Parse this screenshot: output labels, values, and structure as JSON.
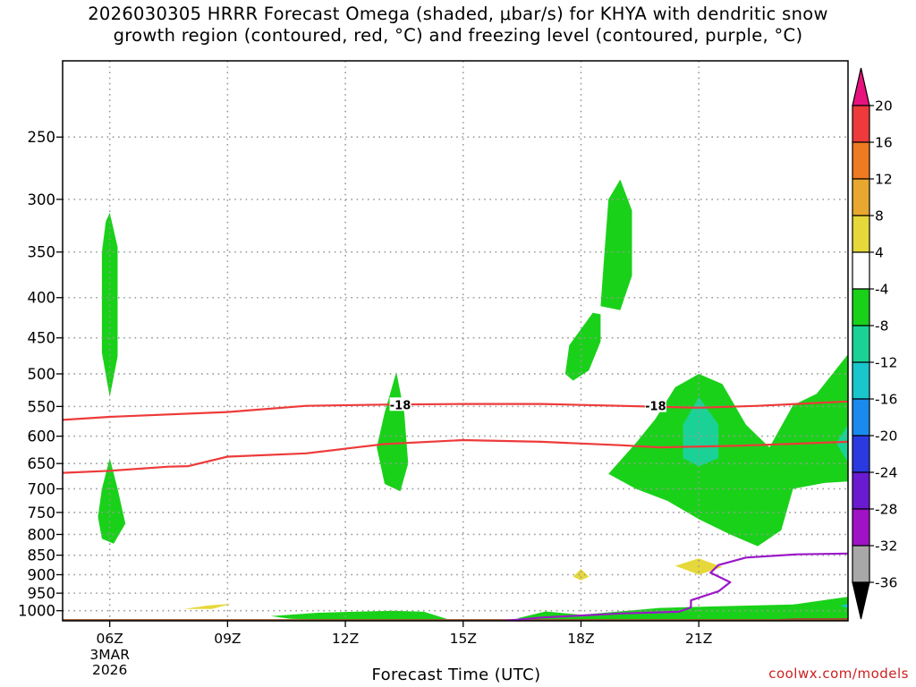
{
  "title_line1": "2026030305 HRRR Forecast Omega (shaded, μbar/s) for KHYA with dendritic snow",
  "title_line2": "growth region (contoured, red, °C) and freezing level (contoured, purple, °C)",
  "x_axis_title": "Forecast Time (UTC)",
  "credit": "coolwx.com/models",
  "chart_data": {
    "type": "contour",
    "title": "2026030305 HRRR Forecast Omega (shaded, μbar/s) for KHYA with dendritic snow growth region (contoured, red, °C) and freezing level (contoured, purple, °C)",
    "xlabel": "Forecast Time (UTC)",
    "ylabel": "",
    "x_range_hours_utc": [
      4.8,
      24.8
    ],
    "y_range_hpa": [
      1030,
      200
    ],
    "x_ticks": [
      {
        "hour": 6,
        "label": "06Z",
        "sub": [
          "3MAR",
          "2026"
        ]
      },
      {
        "hour": 9,
        "label": "09Z"
      },
      {
        "hour": 12,
        "label": "12Z"
      },
      {
        "hour": 15,
        "label": "15Z"
      },
      {
        "hour": 18,
        "label": "18Z"
      },
      {
        "hour": 21,
        "label": "21Z"
      }
    ],
    "y_ticks": [
      250,
      300,
      350,
      400,
      450,
      500,
      550,
      600,
      650,
      700,
      750,
      800,
      850,
      900,
      950,
      1000
    ],
    "grid": true,
    "colorbar": {
      "labels": [
        "20",
        "16",
        "12",
        "8",
        "4",
        "-4",
        "-8",
        "-12",
        "-16",
        "-20",
        "-24",
        "-28",
        "-32",
        "-36"
      ],
      "colors": [
        "#e8127e",
        "#ee3a3a",
        "#ee7a22",
        "#e8a830",
        "#e6d83a",
        "#ffffff",
        "#1ad11a",
        "#1ad296",
        "#18c6cc",
        "#1a8aee",
        "#2a3ae0",
        "#6a1ad0",
        "#a012c6",
        "#a8a8a8",
        "#000000"
      ]
    },
    "contour_lines": [
      {
        "name": "-18",
        "color": "#ee3a3a",
        "points": [
          [
            4.8,
            572
          ],
          [
            6,
            567
          ],
          [
            9,
            559
          ],
          [
            11,
            549
          ],
          [
            13,
            547
          ],
          [
            15,
            546
          ],
          [
            17,
            546
          ],
          [
            19,
            549
          ],
          [
            21,
            552
          ],
          [
            22.5,
            549
          ],
          [
            24.8,
            542
          ]
        ]
      },
      {
        "name": "-12",
        "color": "#ee3a3a",
        "points": [
          [
            4.8,
            668
          ],
          [
            6,
            664
          ],
          [
            7.5,
            656
          ],
          [
            8,
            655
          ],
          [
            9,
            637
          ],
          [
            11,
            631
          ],
          [
            13,
            614
          ],
          [
            15,
            607
          ],
          [
            17,
            610
          ],
          [
            19,
            616
          ],
          [
            20,
            620
          ],
          [
            22,
            617
          ],
          [
            24.8,
            610
          ]
        ]
      },
      {
        "name": "0",
        "color": "#9a18c8",
        "points": [
          [
            15.6,
            1035
          ],
          [
            17,
            1020
          ],
          [
            19,
            1008
          ],
          [
            20.5,
            1003
          ],
          [
            20.8,
            990
          ],
          [
            20.8,
            970
          ],
          [
            21.5,
            945
          ],
          [
            21.8,
            920
          ],
          [
            21.3,
            895
          ],
          [
            21.5,
            875
          ],
          [
            22.2,
            856
          ],
          [
            23.5,
            848
          ],
          [
            24.8,
            846
          ]
        ]
      }
    ],
    "contour_labels": [
      {
        "text": "-18",
        "hour": 13.4,
        "hpa": 547,
        "color": "#ee3a3a"
      },
      {
        "text": "-18",
        "hour": 19.9,
        "hpa": 549,
        "color": "#ee3a3a"
      }
    ],
    "shaded_regions": [
      {
        "bin": "-4 to -8",
        "color": "#1ad11a",
        "description": "upward motion near 06Z aloft",
        "points": [
          [
            6.0,
            312
          ],
          [
            6.2,
            345
          ],
          [
            6.2,
            400
          ],
          [
            6.2,
            475
          ],
          [
            6.0,
            535
          ],
          [
            5.8,
            470
          ],
          [
            5.8,
            398
          ],
          [
            5.8,
            350
          ],
          [
            5.9,
            320
          ]
        ]
      },
      {
        "bin": "-4 to -8",
        "color": "#1ad11a",
        "description": "upward motion near 06Z low",
        "points": [
          [
            6.0,
            640
          ],
          [
            6.2,
            700
          ],
          [
            6.4,
            775
          ],
          [
            6.1,
            822
          ],
          [
            5.8,
            810
          ],
          [
            5.7,
            760
          ],
          [
            5.8,
            700
          ]
        ]
      },
      {
        "bin": "4 to 8",
        "color": "#e6d83a",
        "description": "weak sinking near 08Z surface",
        "points": [
          [
            7.9,
            995
          ],
          [
            8.5,
            985
          ],
          [
            9.1,
            980
          ],
          [
            8.6,
            995
          ]
        ]
      },
      {
        "bin": "-4 to -8",
        "color": "#1ad11a",
        "description": "upward motion near 13Z",
        "points": [
          [
            13.3,
            497
          ],
          [
            13.5,
            560
          ],
          [
            13.6,
            650
          ],
          [
            13.4,
            705
          ],
          [
            13.0,
            690
          ],
          [
            12.8,
            620
          ],
          [
            13.0,
            560
          ]
        ]
      },
      {
        "bin": "-4 to -8",
        "color": "#1ad11a",
        "description": "near-surface lift 10Z-14Z",
        "points": [
          [
            10.1,
            1016
          ],
          [
            11.3,
            1006
          ],
          [
            13.2,
            1000
          ],
          [
            14.0,
            1003
          ],
          [
            14.6,
            1025
          ],
          [
            12.5,
            1030
          ],
          [
            10.6,
            1024
          ]
        ]
      },
      {
        "bin": "-4 to -8",
        "color": "#1ad11a",
        "description": "mid-level lift near 18Z",
        "points": [
          [
            18.3,
            418
          ],
          [
            17.7,
            460
          ],
          [
            17.6,
            500
          ],
          [
            17.8,
            510
          ],
          [
            18.2,
            495
          ],
          [
            18.5,
            455
          ],
          [
            18.5,
            420
          ]
        ]
      },
      {
        "bin": "-4 to -8",
        "color": "#1ad11a",
        "description": "upper lift near 19Z",
        "points": [
          [
            19.0,
            283
          ],
          [
            19.3,
            310
          ],
          [
            19.3,
            375
          ],
          [
            19.0,
            415
          ],
          [
            18.5,
            410
          ],
          [
            18.6,
            350
          ],
          [
            18.7,
            300
          ]
        ]
      },
      {
        "bin": "4 to 8",
        "color": "#e6d83a",
        "description": "small sinking near 18Z",
        "points": [
          [
            18.0,
            885
          ],
          [
            18.2,
            905
          ],
          [
            18.0,
            915
          ],
          [
            17.8,
            905
          ]
        ]
      },
      {
        "bin": "-4 to -8",
        "color": "#1ad11a",
        "description": "broad lift 20Z-24Z",
        "points": [
          [
            24.8,
            472
          ],
          [
            24.0,
            530
          ],
          [
            23.4,
            548
          ],
          [
            22.8,
            620
          ],
          [
            22.2,
            580
          ],
          [
            21.6,
            515
          ],
          [
            21.0,
            500
          ],
          [
            20.4,
            520
          ],
          [
            19.9,
            570
          ],
          [
            19.4,
            612
          ],
          [
            18.7,
            670
          ],
          [
            19.4,
            700
          ],
          [
            20.2,
            725
          ],
          [
            21.0,
            765
          ],
          [
            21.8,
            800
          ],
          [
            22.5,
            828
          ],
          [
            23.1,
            790
          ],
          [
            23.4,
            700
          ],
          [
            24.2,
            688
          ],
          [
            24.8,
            685
          ]
        ]
      },
      {
        "bin": "-8 to -12",
        "color": "#1ad296",
        "description": "stronger lift near 21Z",
        "points": [
          [
            21.0,
            535
          ],
          [
            21.5,
            580
          ],
          [
            21.5,
            640
          ],
          [
            21.0,
            655
          ],
          [
            20.6,
            640
          ],
          [
            20.6,
            580
          ]
        ]
      },
      {
        "bin": "-8 to -12",
        "color": "#1ad296",
        "description": "stronger lift near 24Z",
        "points": [
          [
            24.8,
            580
          ],
          [
            24.5,
            612
          ],
          [
            24.8,
            648
          ]
        ]
      },
      {
        "bin": "4 to 8",
        "color": "#e6d83a",
        "description": "sinking near 21Z",
        "points": [
          [
            20.4,
            877
          ],
          [
            21.0,
            858
          ],
          [
            21.6,
            880
          ],
          [
            21.0,
            900
          ]
        ]
      },
      {
        "bin": "-4 to -8",
        "color": "#1ad11a",
        "description": "near-surface lift 16Z-24Z",
        "points": [
          [
            16.4,
            1022
          ],
          [
            17.1,
            1002
          ],
          [
            18.0,
            1012
          ],
          [
            20.0,
            992
          ],
          [
            21.2,
            988
          ],
          [
            23.4,
            982
          ],
          [
            24.8,
            960
          ],
          [
            24.8,
            1030
          ],
          [
            16.5,
            1030
          ]
        ]
      },
      {
        "bin": "-12 to -16",
        "color": "#18c6cc",
        "description": "small strong lift at right edge",
        "points": [
          [
            24.6,
            986
          ],
          [
            24.8,
            980
          ],
          [
            24.8,
            992
          ]
        ]
      }
    ],
    "ground": {
      "color": "#9a5530",
      "points": [
        [
          4.8,
          1030
        ],
        [
          24.8,
          1030
        ],
        [
          24.8,
          1022
        ],
        [
          23.5,
          1022
        ],
        [
          23.0,
          1025
        ],
        [
          4.8,
          1025
        ]
      ]
    }
  }
}
